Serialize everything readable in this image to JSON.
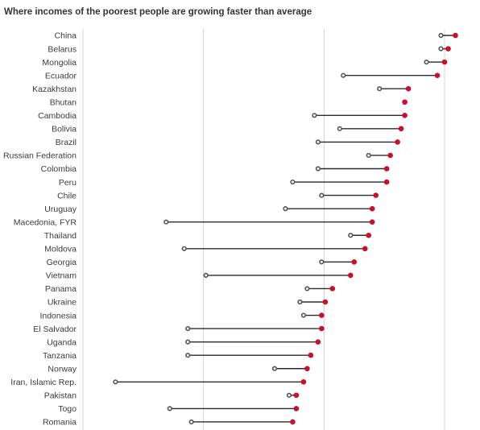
{
  "title": "Where incomes of the poorest people are growing faster than average",
  "colors": {
    "end_dot": "#c8102e",
    "start_dot": "#555555",
    "connector": "#2b2b2b",
    "grid": "#d6d6d6"
  },
  "chart_data": {
    "type": "dumbbell",
    "title": "Where incomes of the poorest people are growing faster than average",
    "xlabel": "",
    "ylabel": "",
    "xlim": [
      -2,
      8
    ],
    "grid": "vertical",
    "series": [
      {
        "name": ""
      },
      {
        "name": ""
      }
    ],
    "categories": [
      "China",
      "Belarus",
      "Mongolia",
      "Ecuador",
      "Kazakhstan",
      "Bhutan",
      "Cambodia",
      "Bolivia",
      "Brazil",
      "Russian Federation",
      "Colombia",
      "Peru",
      "Chile",
      "Uruguay",
      "Macedonia, FYR",
      "Thailand",
      "Moldova",
      "Georgia",
      "Vietnam",
      "Panama",
      "Ukraine",
      "Indonesia",
      "El Salvador",
      "Uganda",
      "Tanzania",
      "Norway",
      "Iran, Islamic Rep.",
      "Pakistan",
      "Togo",
      "Romania"
    ],
    "start": [
      7.9,
      7.9,
      7.5,
      5.2,
      6.2,
      6.9,
      4.4,
      5.1,
      4.5,
      5.9,
      4.5,
      3.8,
      4.6,
      3.6,
      0.3,
      5.4,
      0.8,
      4.6,
      1.4,
      4.2,
      4.0,
      4.1,
      0.9,
      0.9,
      0.9,
      3.3,
      -1.1,
      3.7,
      0.4,
      1.0
    ],
    "end": [
      8.3,
      8.1,
      8.0,
      7.8,
      7.0,
      6.9,
      6.9,
      6.8,
      6.7,
      6.5,
      6.4,
      6.4,
      6.1,
      6.0,
      6.0,
      5.9,
      5.8,
      5.5,
      5.4,
      4.9,
      4.7,
      4.6,
      4.6,
      4.5,
      4.3,
      4.2,
      4.1,
      3.9,
      3.9,
      3.8
    ]
  }
}
